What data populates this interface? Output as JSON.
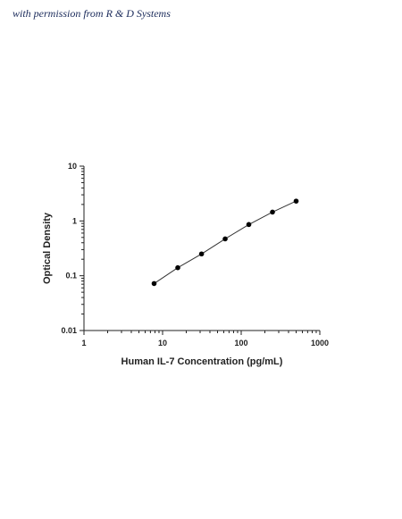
{
  "watermark": {
    "text": "with permission from R & D Systems"
  },
  "chart_data": {
    "type": "scatter",
    "title": "",
    "xlabel": "Human IL-7 Concentration (pg/mL)",
    "ylabel": "Optical Density",
    "xscale": "log",
    "yscale": "log",
    "xlim": [
      1,
      1000
    ],
    "ylim": [
      0.01,
      10
    ],
    "xticks": [
      1,
      10,
      100,
      1000
    ],
    "xtick_labels": [
      "1",
      "10",
      "100",
      "1000"
    ],
    "yticks": [
      0.01,
      0.1,
      1,
      10
    ],
    "ytick_labels": [
      "0.01",
      "0.1",
      "1",
      "10"
    ],
    "grid": false,
    "legend": "none",
    "series": [
      {
        "x": [
          7.8,
          15.6,
          31.3,
          62.5,
          125,
          250,
          500
        ],
        "y": [
          0.072,
          0.14,
          0.25,
          0.47,
          0.86,
          1.45,
          2.3
        ]
      }
    ],
    "fit_line": true,
    "colors": {
      "axis": "#222222",
      "points": "#000000",
      "line": "#333333"
    }
  }
}
